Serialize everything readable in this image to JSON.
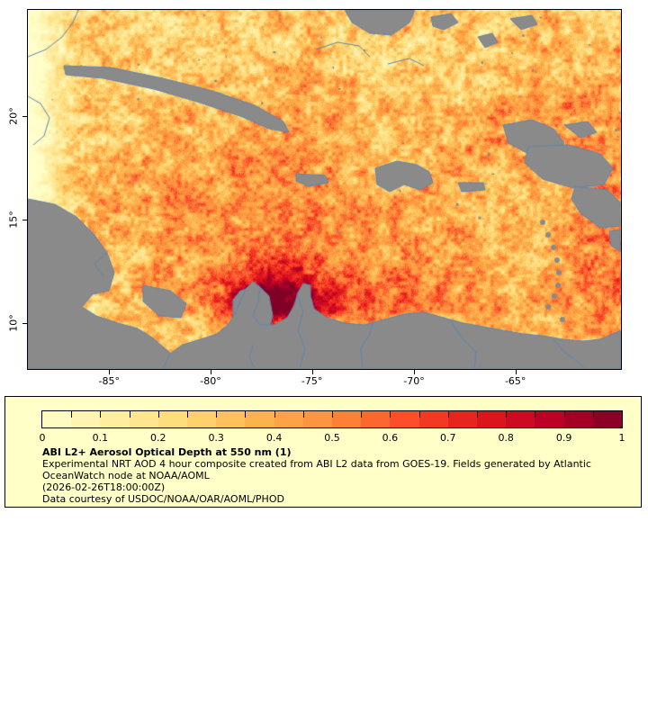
{
  "map": {
    "x_tick_labels": [
      "-85°",
      "-80°",
      "-75°",
      "-70°",
      "-65°"
    ],
    "y_tick_labels": [
      "20°",
      "15°",
      "10°"
    ],
    "land_color": "#8a8a8a",
    "coast_color": "#5f87b0",
    "frame_color": "#000000"
  },
  "legend": {
    "background": "#ffffc8",
    "title": "ABI L2+ Aerosol Optical Depth at 550 nm (1)",
    "desc_line1": "Experimental NRT AOD 4 hour composite created from ABI L2 data from GOES-19. Fields generated by Atlantic",
    "desc_line2": "OceanWatch node at NOAA/AOML",
    "timestamp": "(2026-02-26T18:00:00Z)",
    "courtesy": "Data courtesy of USDOC/NOAA/OAR/AOML/PHOD",
    "colorbar": {
      "variable": "Aerosol Optical Depth at 550 nm",
      "min": 0,
      "max": 1,
      "segments": 20,
      "tick_labels": [
        "0",
        "0.1",
        "0.2",
        "0.3",
        "0.4",
        "0.5",
        "0.6",
        "0.7",
        "0.8",
        "0.9",
        "1"
      ],
      "stops": [
        "#ffffcc",
        "#ffeda0",
        "#fed976",
        "#feb24c",
        "#fd8d3c",
        "#fc4e2a",
        "#e31a1c",
        "#bd0026",
        "#800026"
      ]
    }
  }
}
